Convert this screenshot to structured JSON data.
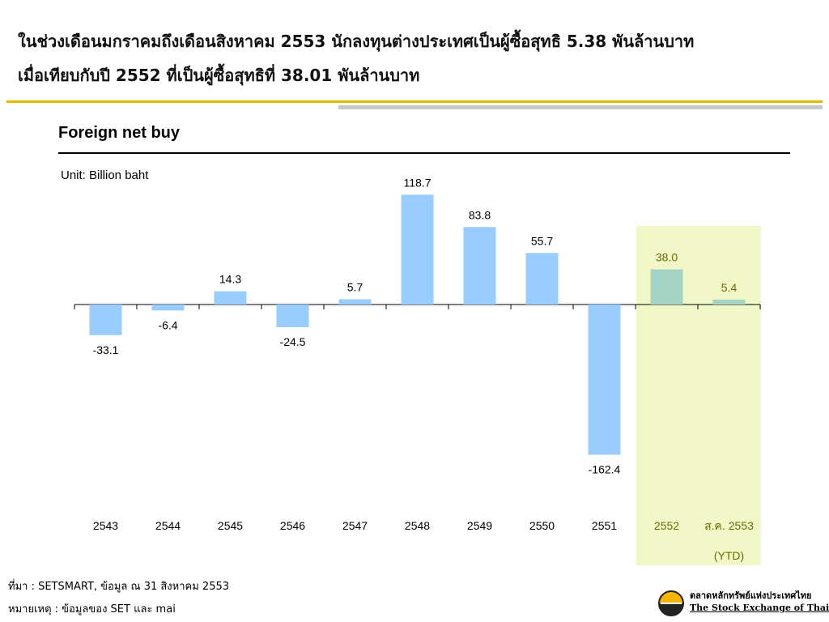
{
  "headline": {
    "line1": "ในช่วงเดือนมกราคมถึงเดือนสิงหาคม 2553 นักลงทุนต่างประเทศเป็นผู้ซื้อสุทธิ 5.38 พันล้านบาท",
    "line2": "เมื่อเทียบกับปี 2552 ที่เป็นผู้ซื้อสุทธิที่ 38.01 พันล้านบาท"
  },
  "colors": {
    "bar": "#99ccff",
    "highlight_bar": "#a6d4c4",
    "highlight_bg": "#f2f7c8",
    "highlight_text": "#6b6b00",
    "rule_gold": "#e6b800",
    "rule_gray": "#c9c9c9"
  },
  "chart_data": {
    "type": "bar",
    "title": "Foreign net buy",
    "unit": "Unit: Billion baht",
    "categories": [
      "2543",
      "2544",
      "2545",
      "2546",
      "2547",
      "2548",
      "2549",
      "2550",
      "2551",
      "2552",
      "ส.ค. 2553"
    ],
    "values": [
      -33.1,
      -6.4,
      14.3,
      -24.5,
      5.7,
      118.7,
      83.8,
      55.7,
      -162.4,
      38.0,
      5.4
    ],
    "value_labels": [
      "-33.1",
      "-6.4",
      "14.3",
      "-24.5",
      "5.7",
      "118.7",
      "83.8",
      "55.7",
      "-162.4",
      "38.0",
      "5.4"
    ],
    "highlighted": [
      "2552",
      "ส.ค. 2553"
    ],
    "highlight_note": "(YTD)",
    "ylim": [
      -180,
      130
    ],
    "grid": false,
    "legend": "none"
  },
  "footer": {
    "source": "ที่มา : SETSMART, ข้อมูล ณ 31 สิงหาคม 2553",
    "note": "หมายเหตุ : ข้อมูลของ SET และ mai"
  },
  "logo": {
    "icon": "set-logo-icon",
    "name_th": "ตลาดหลักทรัพย์แห่งประเทศไทย",
    "name_en": "The Stock Exchange of Thailand"
  }
}
